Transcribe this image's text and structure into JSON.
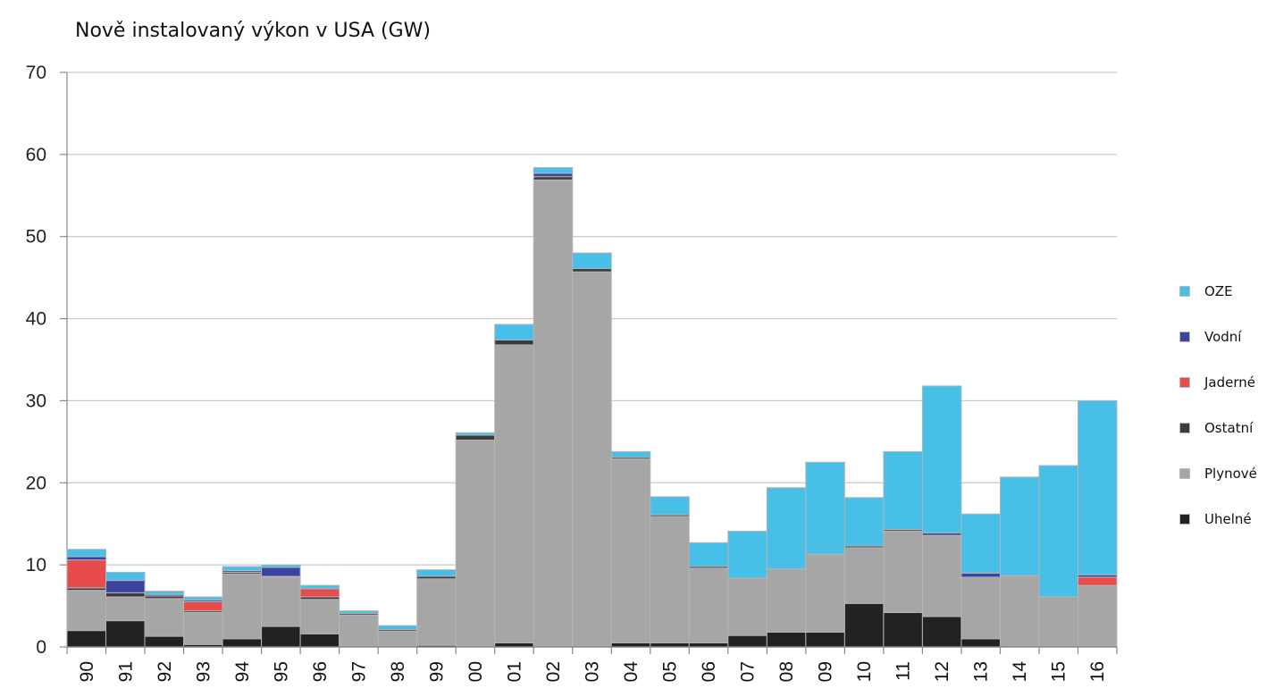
{
  "chart_data": {
    "type": "bar",
    "stacked": true,
    "title": "Nově instalovaný výkon v USA (GW)",
    "xlabel": "",
    "ylabel": "",
    "ylim": [
      0,
      70
    ],
    "yticks": [
      0,
      10,
      20,
      30,
      40,
      50,
      60,
      70
    ],
    "grid": true,
    "legend_position": "right",
    "categories": [
      "90",
      "91",
      "92",
      "93",
      "94",
      "95",
      "96",
      "97",
      "98",
      "99",
      "00",
      "01",
      "02",
      "03",
      "04",
      "05",
      "06",
      "07",
      "08",
      "09",
      "10",
      "11",
      "12",
      "13",
      "14",
      "15",
      "16"
    ],
    "series": [
      {
        "name": "Uhelné",
        "color": "#222222",
        "values": [
          2.0,
          3.2,
          1.3,
          0.3,
          1.0,
          2.5,
          1.6,
          0.0,
          0.0,
          0.2,
          0.0,
          0.5,
          0.0,
          0.0,
          0.5,
          0.5,
          0.5,
          1.4,
          1.8,
          1.8,
          5.3,
          4.2,
          3.7,
          1.0,
          0.0,
          0.0,
          0.0
        ]
      },
      {
        "name": "Plynové",
        "color": "#a6a6a6",
        "values": [
          4.9,
          2.9,
          4.6,
          3.9,
          7.9,
          6.0,
          4.2,
          3.9,
          1.9,
          8.1,
          25.2,
          36.3,
          56.9,
          45.7,
          22.4,
          15.4,
          9.1,
          7.0,
          7.7,
          9.5,
          6.8,
          9.9,
          9.9,
          7.5,
          8.7,
          6.1,
          7.5
        ]
      },
      {
        "name": "Ostatní",
        "color": "#3c3c3c",
        "values": [
          0.3,
          0.5,
          0.3,
          0.2,
          0.2,
          0.1,
          0.3,
          0.2,
          0.2,
          0.3,
          0.6,
          0.6,
          0.4,
          0.4,
          0.2,
          0.2,
          0.2,
          0.0,
          0.0,
          0.0,
          0.2,
          0.2,
          0.0,
          0.0,
          0.0,
          0.0,
          0.0
        ]
      },
      {
        "name": "Jaderné",
        "color": "#e84c4a",
        "values": [
          3.4,
          0.0,
          0.0,
          1.1,
          0.0,
          0.0,
          1.0,
          0.0,
          0.0,
          0.0,
          0.0,
          0.0,
          0.0,
          0.0,
          0.0,
          0.0,
          0.0,
          0.0,
          0.0,
          0.0,
          0.0,
          0.0,
          0.0,
          0.0,
          0.0,
          0.0,
          1.0
        ]
      },
      {
        "name": "Vodní",
        "color": "#3b44a0",
        "values": [
          0.4,
          1.5,
          0.2,
          0.2,
          0.2,
          1.1,
          0.0,
          0.0,
          0.0,
          0.0,
          0.0,
          0.0,
          0.4,
          0.0,
          0.0,
          0.0,
          0.0,
          0.0,
          0.0,
          0.0,
          0.0,
          0.0,
          0.3,
          0.5,
          0.0,
          0.0,
          0.3
        ]
      },
      {
        "name": "OZE",
        "color": "#48bfe6",
        "values": [
          0.9,
          1.0,
          0.4,
          0.4,
          0.5,
          0.3,
          0.4,
          0.3,
          0.5,
          0.8,
          0.3,
          1.9,
          0.7,
          1.9,
          0.7,
          2.2,
          2.9,
          5.7,
          9.9,
          11.2,
          5.9,
          9.5,
          17.9,
          7.2,
          12.0,
          16.0,
          21.2
        ]
      }
    ]
  },
  "legend": {
    "items": [
      {
        "label": "OZE",
        "color": "#48bfe6"
      },
      {
        "label": "Vodní",
        "color": "#3b44a0"
      },
      {
        "label": "Jaderné",
        "color": "#e84c4a"
      },
      {
        "label": "Ostatní",
        "color": "#3c3c3c"
      },
      {
        "label": "Plynové",
        "color": "#a6a6a6"
      },
      {
        "label": "Uhelné",
        "color": "#222222"
      }
    ]
  }
}
